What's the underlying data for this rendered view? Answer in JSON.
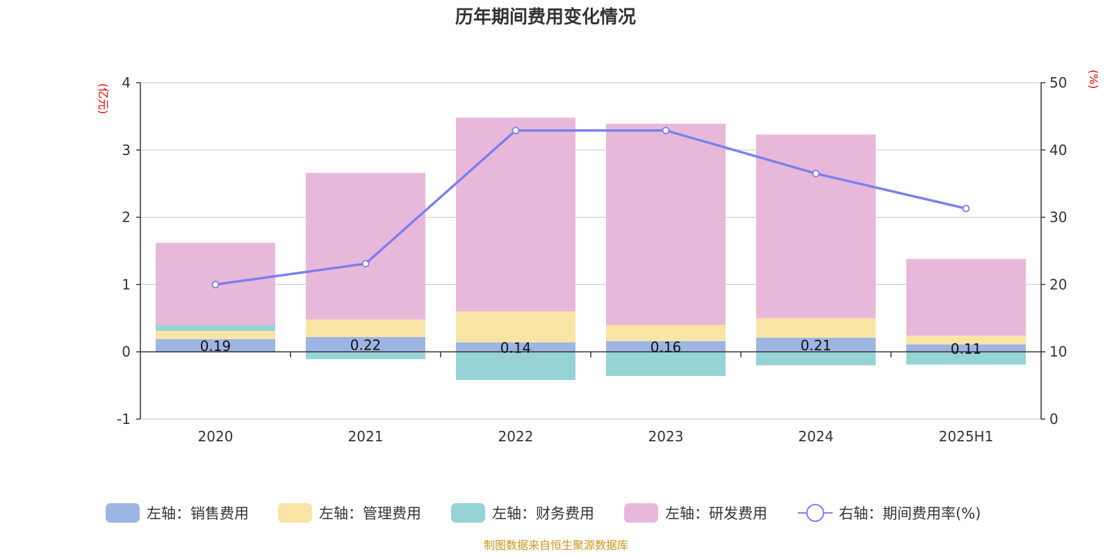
{
  "chart_data": {
    "type": "bar",
    "title": "历年期间费用变化情况",
    "categories": [
      "2020",
      "2021",
      "2022",
      "2023",
      "2024",
      "2025H1"
    ],
    "left_axis": {
      "unit": "(亿元)",
      "range": [
        -1,
        4
      ],
      "ticks": [
        "-1",
        "0",
        "1",
        "2",
        "3",
        "4"
      ]
    },
    "right_axis": {
      "unit": "(%)",
      "range": [
        0,
        50
      ],
      "ticks": [
        "0",
        "10",
        "20",
        "30",
        "40",
        "50"
      ]
    },
    "grid": true,
    "legend_position": "bottom",
    "series": [
      {
        "name": "左轴：销售费用",
        "kind": "bar",
        "axis": "left",
        "color": "#9db5e2",
        "values": [
          0.19,
          0.22,
          0.14,
          0.16,
          0.21,
          0.11
        ]
      },
      {
        "name": "左轴：管理费用",
        "kind": "bar",
        "axis": "left",
        "color": "#f8e5a6",
        "values": [
          0.12,
          0.26,
          0.46,
          0.24,
          0.29,
          0.13
        ]
      },
      {
        "name": "左轴：财务费用",
        "kind": "bar",
        "axis": "left",
        "color": "#96d3d4",
        "values": [
          0.09,
          -0.11,
          -0.42,
          -0.36,
          -0.2,
          -0.19
        ]
      },
      {
        "name": "左轴：研发费用",
        "kind": "bar",
        "axis": "left",
        "color": "#e8b8da",
        "values": [
          1.22,
          2.18,
          2.88,
          2.99,
          2.73,
          1.14
        ]
      },
      {
        "name": "右轴：期间费用率(%)",
        "kind": "line",
        "axis": "right",
        "color": "#7b7ff0",
        "values": [
          20.0,
          23.1,
          42.9,
          42.9,
          36.5,
          31.3
        ]
      }
    ],
    "data_labels": [
      "0.19",
      "0.22",
      "0.14",
      "0.16",
      "0.21",
      "0.11"
    ]
  },
  "source_note": "制图数据来自恒生聚源数据库"
}
